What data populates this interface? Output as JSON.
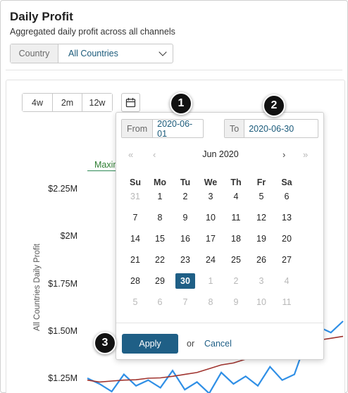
{
  "header": {
    "title": "Daily Profit",
    "subtitle": "Aggregated daily profit across all channels"
  },
  "filter": {
    "label": "Country",
    "selected": "All Countries"
  },
  "toolbar": {
    "ranges": [
      "4w",
      "2m",
      "12w"
    ],
    "calendar_icon": "calendar-icon"
  },
  "chart": {
    "legend_partial": "Maxim",
    "y_axis_label": "All Countries Daily Profit",
    "y_ticks": [
      "$2.25M",
      "$2M",
      "$1.75M",
      "$1.50M",
      "$1.25M"
    ],
    "colors": {
      "series": "#2f8fe6",
      "trend": "#a0342f",
      "max": "#2e8b57"
    }
  },
  "chart_data": {
    "type": "line",
    "ylabel": "All Countries Daily Profit",
    "yticks": [
      "$1.25M",
      "$1.50M",
      "$1.75M",
      "$2M",
      "$2.25M"
    ],
    "series": [
      {
        "values": [
          1.25,
          1.22,
          1.18,
          1.27,
          1.21,
          1.24,
          1.2,
          1.29,
          1.19,
          1.23,
          1.17,
          1.28,
          1.22,
          1.26,
          1.21,
          1.31,
          1.24,
          1.27,
          1.45,
          1.52,
          1.49,
          1.55
        ]
      },
      {
        "values": [
          1.24,
          1.23,
          1.235,
          1.24,
          1.242,
          1.25,
          1.252,
          1.26,
          1.27,
          1.28,
          1.3,
          1.32,
          1.33,
          1.35,
          1.37,
          1.39,
          1.4,
          1.42,
          1.44,
          1.45,
          1.46,
          1.47
        ]
      }
    ]
  },
  "datepicker": {
    "from_label": "From",
    "from_value": "2020-06-01",
    "to_label": "To",
    "to_value": "2020-06-30",
    "month": "Jun 2020",
    "nav": {
      "first": "«",
      "prev": "‹",
      "next": "›",
      "last": "»"
    },
    "weekdays": [
      "Su",
      "Mo",
      "Tu",
      "We",
      "Th",
      "Fr",
      "Sa"
    ],
    "weeks": [
      [
        "31",
        "1",
        "2",
        "3",
        "4",
        "5",
        "6"
      ],
      [
        "7",
        "8",
        "9",
        "10",
        "11",
        "12",
        "13"
      ],
      [
        "14",
        "15",
        "16",
        "17",
        "18",
        "19",
        "20"
      ],
      [
        "21",
        "22",
        "23",
        "24",
        "25",
        "26",
        "27"
      ],
      [
        "28",
        "29",
        "30",
        "1",
        "2",
        "3",
        "4"
      ],
      [
        "5",
        "6",
        "7",
        "8",
        "9",
        "10",
        "11"
      ]
    ],
    "apply": "Apply",
    "or": "or",
    "cancel": "Cancel"
  },
  "callouts": [
    "1",
    "2",
    "3"
  ]
}
